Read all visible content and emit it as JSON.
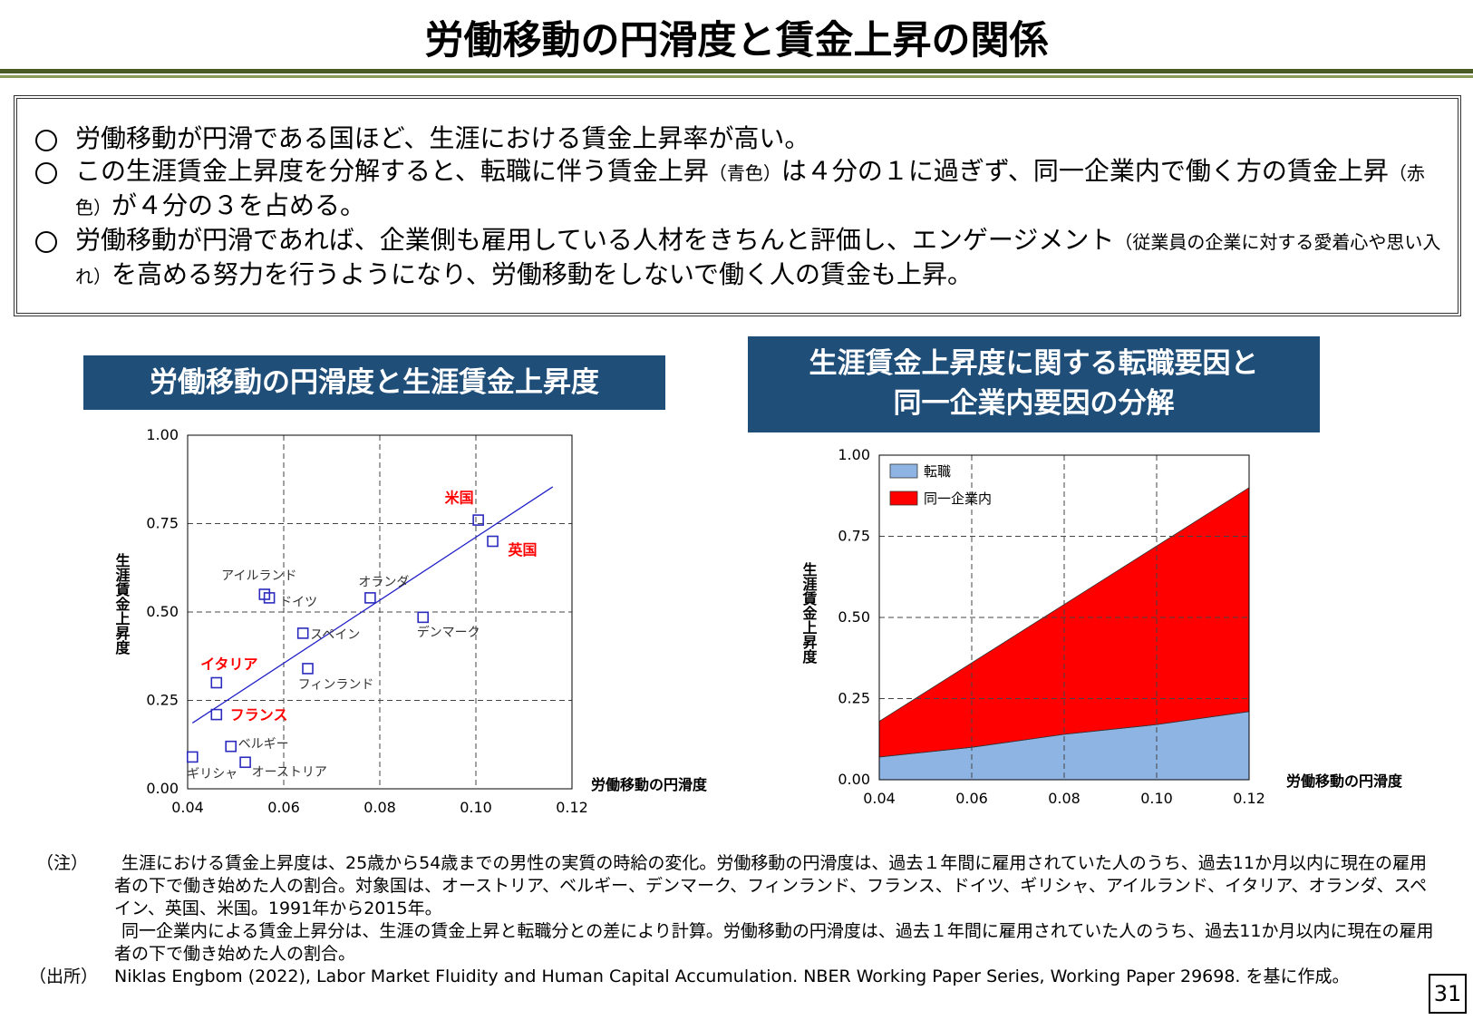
{
  "title": "労働移動の円滑度と賃金上昇の関係",
  "summary": {
    "bullets": [
      [
        {
          "text": "労働移動が円滑である国ほど、生涯における賃金上昇率が高い。"
        }
      ],
      [
        {
          "text": "この生涯賃金上昇度を分解すると、転職に伴う賃金上昇"
        },
        {
          "text": "（青色）",
          "small": true
        },
        {
          "text": "は４分の１に過ぎず、同一企業内で働く方の賃金上昇"
        },
        {
          "text": "（赤色）",
          "small": true
        },
        {
          "text": "が４分の３を占める。"
        }
      ],
      [
        {
          "text": "労働移動が円滑であれば、企業側も雇用している人材をきちんと評価し、エンゲージメント"
        },
        {
          "text": "（従業員の企業に対する愛着心や思い入れ）",
          "small": true
        },
        {
          "text": "を高める努力を行うようになり、労働移動をしないで働く人の賃金も上昇。"
        }
      ]
    ]
  },
  "chart_data": [
    {
      "type": "scatter",
      "title": "労働移動の円滑度と生涯賃金上昇度",
      "xlabel": "労働移動の円滑度",
      "ylabel": "生涯賃金上昇度",
      "labels": [
        "ギリシャ",
        "イタリア",
        "フランス",
        "ベルギー",
        "オーストリア",
        "アイルランド",
        "ドイツ",
        "スペイン",
        "フィンランド",
        "オランダ",
        "デンマーク",
        "米国",
        "英国"
      ],
      "x": [
        0.041,
        0.046,
        0.046,
        0.049,
        0.052,
        0.056,
        0.057,
        0.064,
        0.065,
        0.078,
        0.089,
        0.1005,
        0.1035
      ],
      "y": [
        0.09,
        0.3,
        0.21,
        0.12,
        0.075,
        0.55,
        0.54,
        0.44,
        0.34,
        0.54,
        0.485,
        0.76,
        0.7
      ],
      "label_colors": [
        "#333333",
        "#ff0000",
        "#ff0000",
        "#333333",
        "#333333",
        "#333333",
        "#333333",
        "#333333",
        "#333333",
        "#333333",
        "#333333",
        "#ff0000",
        "#ff0000"
      ],
      "marker_color": "#2b2bbf",
      "trend_line": {
        "color": "#2020c8",
        "x": [
          0.041,
          0.116
        ],
        "y": [
          0.186,
          0.854
        ]
      },
      "xlim": [
        0.04,
        0.12
      ],
      "ylim": [
        0,
        1
      ],
      "xticks": [
        0.04,
        0.06,
        0.08,
        {
          "value": 0.1,
          "label": "0.10"
        },
        0.12
      ],
      "yticks": [
        {
          "value": 0,
          "label": "0.00"
        },
        0.25,
        {
          "value": 0.5,
          "label": "0.50"
        },
        0.75,
        {
          "value": 1,
          "label": "1.00"
        }
      ],
      "grid": true
    },
    {
      "type": "stacked_area",
      "title": [
        "生涯賃金上昇度に関する転職要因と",
        "同一企業内要因の分解"
      ],
      "xlabel": "労働移動の円滑度",
      "ylabel": "生涯賃金上昇度",
      "x": [
        0.04,
        0.06,
        0.08,
        0.1,
        0.12
      ],
      "series": [
        {
          "name": "転職",
          "color": "#8eb4e3",
          "values": [
            0.07,
            0.1,
            0.14,
            0.17,
            0.21
          ]
        },
        {
          "name": "同一企業内",
          "color": "#ff0000",
          "values": [
            0.11,
            0.26,
            0.4,
            0.55,
            0.69
          ]
        }
      ],
      "xlim": [
        0.04,
        0.12
      ],
      "ylim": [
        0,
        1
      ],
      "xticks": [
        0.04,
        0.06,
        0.08,
        {
          "value": 0.1,
          "label": "0.10"
        },
        0.12
      ],
      "yticks": [
        {
          "value": 0,
          "label": "0.00"
        },
        0.25,
        {
          "value": 0.5,
          "label": "0.50"
        },
        0.75,
        {
          "value": 1,
          "label": "1.00"
        }
      ],
      "grid": true,
      "legend": "upper left"
    }
  ],
  "notes": {
    "note_label": "（注）",
    "note_paragraphs": [
      "生涯における賃金上昇度は、25歳から54歳までの男性の実質の時給の変化。労働移動の円滑度は、過去１年間に雇用されていた人のうち、過去11か月以内に現在の雇用者の下で働き始めた人の割合。対象国は、オーストリア、ベルギー、デンマーク、フィンランド、フランス、ドイツ、ギリシャ、アイルランド、イタリア、オランダ、スペイン、英国、米国。1991年から2015年。",
      "同一企業内による賃金上昇分は、生涯の賃金上昇と転職分との差により計算。労働移動の円滑度は、過去１年間に雇用されていた人のうち、過去11か月以内に現在の雇用者の下で働き始めた人の割合。"
    ],
    "source_label": "（出所）",
    "source_text": "Niklas Engbom (2022), Labor Market Fluidity and Human Capital Accumulation. NBER Working Paper Series, Working Paper 29698. を基に作成。"
  },
  "page_number": "31"
}
